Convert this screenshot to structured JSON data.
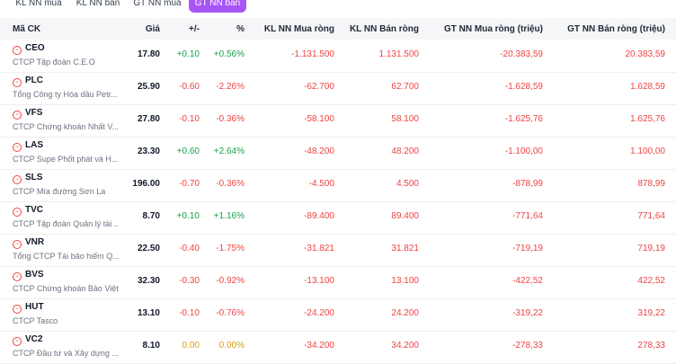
{
  "tabs": [
    {
      "label": "KL NN mua",
      "active": false
    },
    {
      "label": "KL NN bán",
      "active": false
    },
    {
      "label": "GT NN mua",
      "active": false
    },
    {
      "label": "GT NN bán",
      "active": true
    }
  ],
  "header": {
    "symbol": "Mã CK",
    "price": "Giá",
    "change": "+/-",
    "percent": "%",
    "net_buy_vol": "KL NN Mua ròng",
    "net_sell_vol": "KL NN Bán ròng",
    "net_buy_val": "GT NN Mua ròng (triệu)",
    "net_sell_val": "GT NN Bán ròng (triệu)"
  },
  "rows": [
    {
      "symbol": "CEO",
      "name": "CTCP Tập đoàn C.E.O",
      "price": "17.80",
      "change": "+0.10",
      "percent": "+0.56%",
      "trend": "up",
      "net_buy_vol": "-1.131.500",
      "net_sell_vol": "1.131.500",
      "net_buy_val": "-20.383,59",
      "net_sell_val": "20.383,59"
    },
    {
      "symbol": "PLC",
      "name": "Tổng Công ty Hóa dầu Petr...",
      "price": "25.90",
      "change": "-0.60",
      "percent": "-2.26%",
      "trend": "down",
      "net_buy_vol": "-62.700",
      "net_sell_vol": "62.700",
      "net_buy_val": "-1.628,59",
      "net_sell_val": "1.628,59"
    },
    {
      "symbol": "VFS",
      "name": "CTCP Chứng khoán Nhất V...",
      "price": "27.80",
      "change": "-0.10",
      "percent": "-0.36%",
      "trend": "down",
      "net_buy_vol": "-58.100",
      "net_sell_vol": "58.100",
      "net_buy_val": "-1.625,76",
      "net_sell_val": "1.625,76"
    },
    {
      "symbol": "LAS",
      "name": "CTCP Supe Phốt phát và H...",
      "price": "23.30",
      "change": "+0.60",
      "percent": "+2.64%",
      "trend": "up",
      "net_buy_vol": "-48.200",
      "net_sell_vol": "48.200",
      "net_buy_val": "-1.100,00",
      "net_sell_val": "1.100,00"
    },
    {
      "symbol": "SLS",
      "name": "CTCP Mía đường Sơn La",
      "price": "196.00",
      "change": "-0.70",
      "percent": "-0.36%",
      "trend": "down",
      "net_buy_vol": "-4.500",
      "net_sell_vol": "4.500",
      "net_buy_val": "-878,99",
      "net_sell_val": "878,99"
    },
    {
      "symbol": "TVC",
      "name": "CTCP Tập đoàn Quản lý tài ...",
      "price": "8.70",
      "change": "+0.10",
      "percent": "+1.16%",
      "trend": "up",
      "net_buy_vol": "-89.400",
      "net_sell_vol": "89.400",
      "net_buy_val": "-771,64",
      "net_sell_val": "771,64"
    },
    {
      "symbol": "VNR",
      "name": "Tổng CTCP Tái bảo hiểm Q...",
      "price": "22.50",
      "change": "-0.40",
      "percent": "-1.75%",
      "trend": "down",
      "net_buy_vol": "-31.821",
      "net_sell_vol": "31.821",
      "net_buy_val": "-719,19",
      "net_sell_val": "719,19"
    },
    {
      "symbol": "BVS",
      "name": "CTCP Chứng khoán Bảo Việt",
      "price": "32.30",
      "change": "-0.30",
      "percent": "-0.92%",
      "trend": "down",
      "net_buy_vol": "-13.100",
      "net_sell_vol": "13.100",
      "net_buy_val": "-422,52",
      "net_sell_val": "422,52"
    },
    {
      "symbol": "HUT",
      "name": "CTCP Tasco",
      "price": "13.10",
      "change": "-0.10",
      "percent": "-0.76%",
      "trend": "down",
      "net_buy_vol": "-24.200",
      "net_sell_vol": "24.200",
      "net_buy_val": "-319,22",
      "net_sell_val": "319,22"
    },
    {
      "symbol": "VC2",
      "name": "CTCP Đầu tư và Xây dựng ...",
      "price": "8.10",
      "change": "0.00",
      "percent": "0.00%",
      "trend": "ref",
      "net_buy_vol": "-34.200",
      "net_sell_vol": "34.200",
      "net_buy_val": "-278,33",
      "net_sell_val": "278,33"
    }
  ]
}
